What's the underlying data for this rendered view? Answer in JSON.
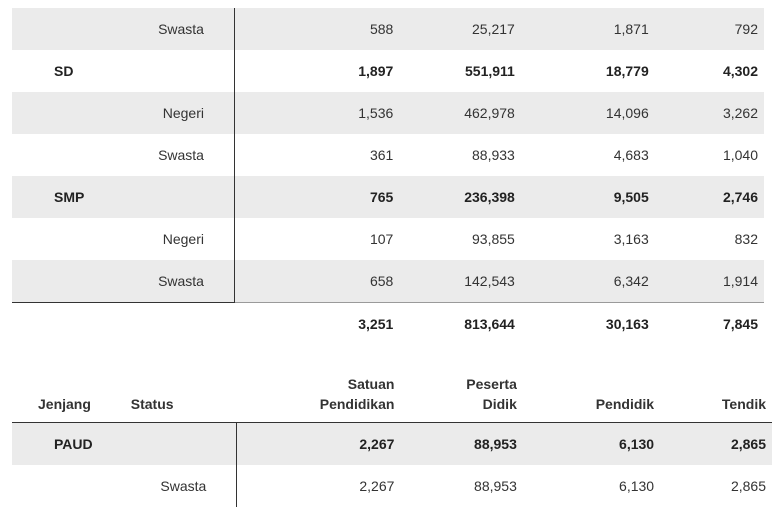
{
  "table_top": {
    "rows": [
      {
        "type": "sub",
        "shade": "alt",
        "jenjang": "",
        "status": "Swasta",
        "satuan": "588",
        "peserta": "25,217",
        "pendidik": "1,871",
        "tendik": "792"
      },
      {
        "type": "group",
        "shade": "plain",
        "jenjang": "SD",
        "status": "",
        "satuan": "1,897",
        "peserta": "551,911",
        "pendidik": "18,779",
        "tendik": "4,302"
      },
      {
        "type": "sub",
        "shade": "alt",
        "jenjang": "",
        "status": "Negeri",
        "satuan": "1,536",
        "peserta": "462,978",
        "pendidik": "14,096",
        "tendik": "3,262"
      },
      {
        "type": "sub",
        "shade": "plain",
        "jenjang": "",
        "status": "Swasta",
        "satuan": "361",
        "peserta": "88,933",
        "pendidik": "4,683",
        "tendik": "1,040"
      },
      {
        "type": "group",
        "shade": "alt",
        "jenjang": "SMP",
        "status": "",
        "satuan": "765",
        "peserta": "236,398",
        "pendidik": "9,505",
        "tendik": "2,746"
      },
      {
        "type": "sub",
        "shade": "plain",
        "jenjang": "",
        "status": "Negeri",
        "satuan": "107",
        "peserta": "93,855",
        "pendidik": "3,163",
        "tendik": "832"
      },
      {
        "type": "sub",
        "shade": "alt",
        "jenjang": "",
        "status": "Swasta",
        "satuan": "658",
        "peserta": "142,543",
        "pendidik": "6,342",
        "tendik": "1,914"
      }
    ],
    "total": {
      "satuan": "3,251",
      "peserta": "813,644",
      "pendidik": "30,163",
      "tendik": "7,845"
    }
  },
  "table_bottom": {
    "headers": {
      "jenjang": "Jenjang",
      "status": "Status",
      "satuan_l1": "Satuan",
      "satuan_l2": "Pendidikan",
      "peserta_l1": "Peserta",
      "peserta_l2": "Didik",
      "pendidik": "Pendidik",
      "tendik": "Tendik"
    },
    "rows": [
      {
        "type": "group",
        "shade": "alt",
        "jenjang": "PAUD",
        "status": "",
        "satuan": "2,267",
        "peserta": "88,953",
        "pendidik": "6,130",
        "tendik": "2,865"
      },
      {
        "type": "sub",
        "shade": "plain",
        "jenjang": "",
        "status": "Swasta",
        "satuan": "2,267",
        "peserta": "88,953",
        "pendidik": "6,130",
        "tendik": "2,865"
      }
    ]
  }
}
